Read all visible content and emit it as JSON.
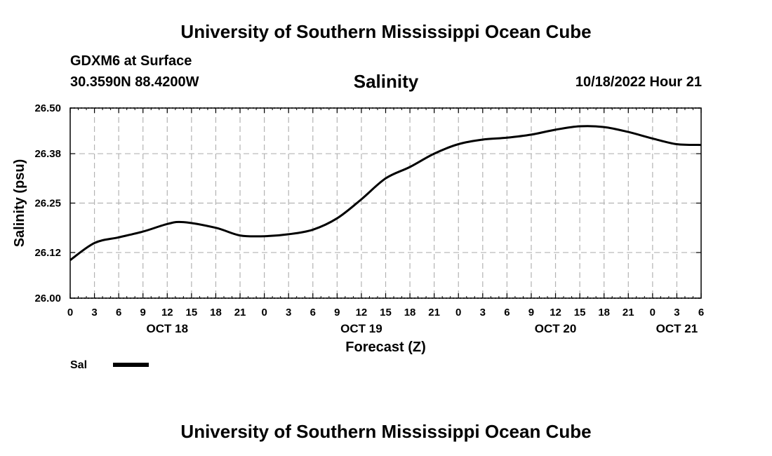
{
  "header": {
    "title": "University of Southern Mississippi Ocean Cube",
    "station": "GDXM6 at Surface",
    "coordinates": "30.3590N  88.4200W",
    "run_time": "10/18/2022 Hour 21"
  },
  "footer": {
    "title": "University of Southern Mississippi Ocean Cube"
  },
  "chart_data": {
    "type": "line",
    "title": "Salinity",
    "xlabel": "Forecast (Z)",
    "ylabel": "Salinity (psu)",
    "xlim": [
      0,
      78
    ],
    "ylim": [
      26.0,
      26.5
    ],
    "grid": true,
    "y_ticks": [
      26.0,
      26.12,
      26.25,
      26.38,
      26.5
    ],
    "y_tick_labels": [
      "26.00",
      "26.12",
      "26.25",
      "26.38",
      "26.50"
    ],
    "x_ticks": [
      0,
      3,
      6,
      9,
      12,
      15,
      18,
      21,
      24,
      27,
      30,
      33,
      36,
      39,
      42,
      45,
      48,
      51,
      54,
      57,
      60,
      63,
      66,
      69,
      72,
      75,
      78
    ],
    "x_tick_labels": [
      "0",
      "3",
      "6",
      "9",
      "12",
      "15",
      "18",
      "21",
      "0",
      "3",
      "6",
      "9",
      "12",
      "15",
      "18",
      "21",
      "0",
      "3",
      "6",
      "9",
      "12",
      "15",
      "18",
      "21",
      "0",
      "3",
      "6"
    ],
    "date_labels": [
      {
        "x": 12,
        "label": "OCT 18"
      },
      {
        "x": 36,
        "label": "OCT 19"
      },
      {
        "x": 60,
        "label": "OCT 20"
      },
      {
        "x": 75,
        "label": "OCT 21"
      }
    ],
    "legend": {
      "placement": "bottom-left",
      "entries": [
        "Sal"
      ]
    },
    "series": [
      {
        "name": "Sal",
        "color": "#000000",
        "x": [
          0,
          3,
          6,
          9,
          12,
          14,
          18,
          21,
          24,
          27,
          30,
          33,
          36,
          39,
          42,
          45,
          48,
          51,
          54,
          57,
          60,
          63,
          66,
          69,
          72,
          75,
          78
        ],
        "values": [
          26.1,
          26.145,
          26.16,
          26.175,
          26.195,
          26.2,
          26.185,
          26.165,
          26.163,
          26.168,
          26.18,
          26.21,
          26.26,
          26.315,
          26.345,
          26.38,
          26.405,
          26.417,
          26.422,
          26.43,
          26.443,
          26.452,
          26.45,
          26.437,
          26.42,
          26.405,
          26.403
        ]
      }
    ]
  }
}
